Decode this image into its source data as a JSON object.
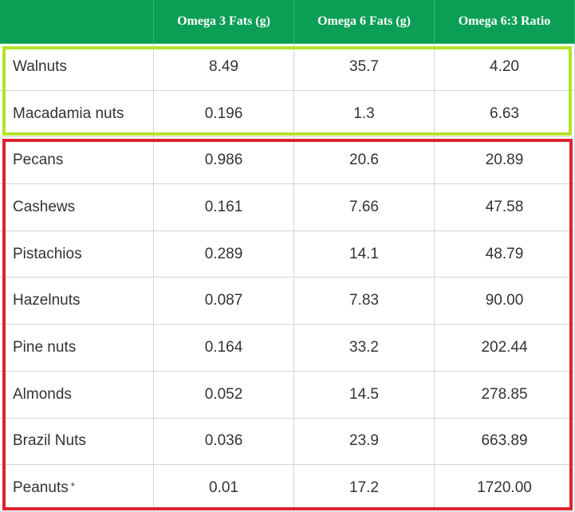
{
  "table": {
    "header": [
      "Omega 3 Fats (g)",
      "Omega 6 Fats (g)",
      "Omega 6:3 Ratio"
    ],
    "rows": [
      {
        "cells": [
          "Walnuts",
          "8.49",
          "35.7",
          "4.20"
        ]
      },
      {
        "cells": [
          "Macadamia nuts",
          "0.196",
          "1.3",
          "6.63"
        ]
      },
      {
        "cells": [
          "Pecans",
          "0.986",
          "20.6",
          "20.89"
        ]
      },
      {
        "cells": [
          "Cashews",
          "0.161",
          "7.66",
          "47.58"
        ]
      },
      {
        "cells": [
          "Pistachios",
          "0.289",
          "14.1",
          "48.79"
        ]
      },
      {
        "cells": [
          "Hazelnuts",
          "0.087",
          "7.83",
          "90.00"
        ]
      },
      {
        "cells": [
          "Pine nuts",
          "0.164",
          "33.2",
          "202.44"
        ]
      },
      {
        "cells": [
          "Almonds",
          "0.052",
          "14.5",
          "278.85"
        ]
      },
      {
        "cells": [
          "Brazil Nuts",
          "0.036",
          "23.9",
          "663.89"
        ]
      },
      {
        "cells": [
          "Peanuts",
          "0.01",
          "17.2",
          "1720.00"
        ],
        "mark": "*"
      }
    ]
  }
}
